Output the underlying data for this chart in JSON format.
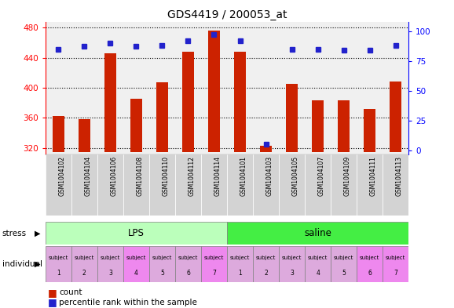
{
  "title": "GDS4419 / 200053_at",
  "samples": [
    "GSM1004102",
    "GSM1004104",
    "GSM1004106",
    "GSM1004108",
    "GSM1004110",
    "GSM1004112",
    "GSM1004114",
    "GSM1004101",
    "GSM1004103",
    "GSM1004105",
    "GSM1004107",
    "GSM1004109",
    "GSM1004111",
    "GSM1004113"
  ],
  "counts": [
    362,
    358,
    446,
    385,
    407,
    448,
    476,
    448,
    323,
    405,
    383,
    383,
    372,
    408
  ],
  "percentiles": [
    85,
    87,
    90,
    87,
    88,
    92,
    97,
    92,
    5,
    85,
    85,
    84,
    84,
    88
  ],
  "stress_groups": [
    {
      "label": "LPS",
      "start": 0,
      "end": 7,
      "color": "#bbffbb"
    },
    {
      "label": "saline",
      "start": 7,
      "end": 14,
      "color": "#44ee44"
    }
  ],
  "individual_colors": [
    "#ddaadd",
    "#ddaadd",
    "#ddaadd",
    "#ee88ee",
    "#ddaadd",
    "#ddaadd",
    "#ee88ee",
    "#ddaadd",
    "#ddaadd",
    "#ddaadd",
    "#ddaadd",
    "#ddaadd",
    "#ee88ee",
    "#ee88ee"
  ],
  "individual_labels": [
    "subject\n1",
    "subject\n2",
    "subject\n3",
    "subject\n4",
    "subject\n5",
    "subject\n6",
    "subject\n7",
    "subject\n1",
    "subject\n2",
    "subject\n3",
    "subject\n4",
    "subject\n5",
    "subject\n6",
    "subject\n7"
  ],
  "ymin": 315,
  "ymax": 483,
  "yticks_left": [
    320,
    360,
    400,
    440,
    480
  ],
  "yticks_right": [
    0,
    25,
    50,
    75,
    100
  ],
  "bar_color": "#cc2200",
  "dot_color": "#2222cc",
  "bar_width": 0.45,
  "bg_color": "#f0f0f0"
}
